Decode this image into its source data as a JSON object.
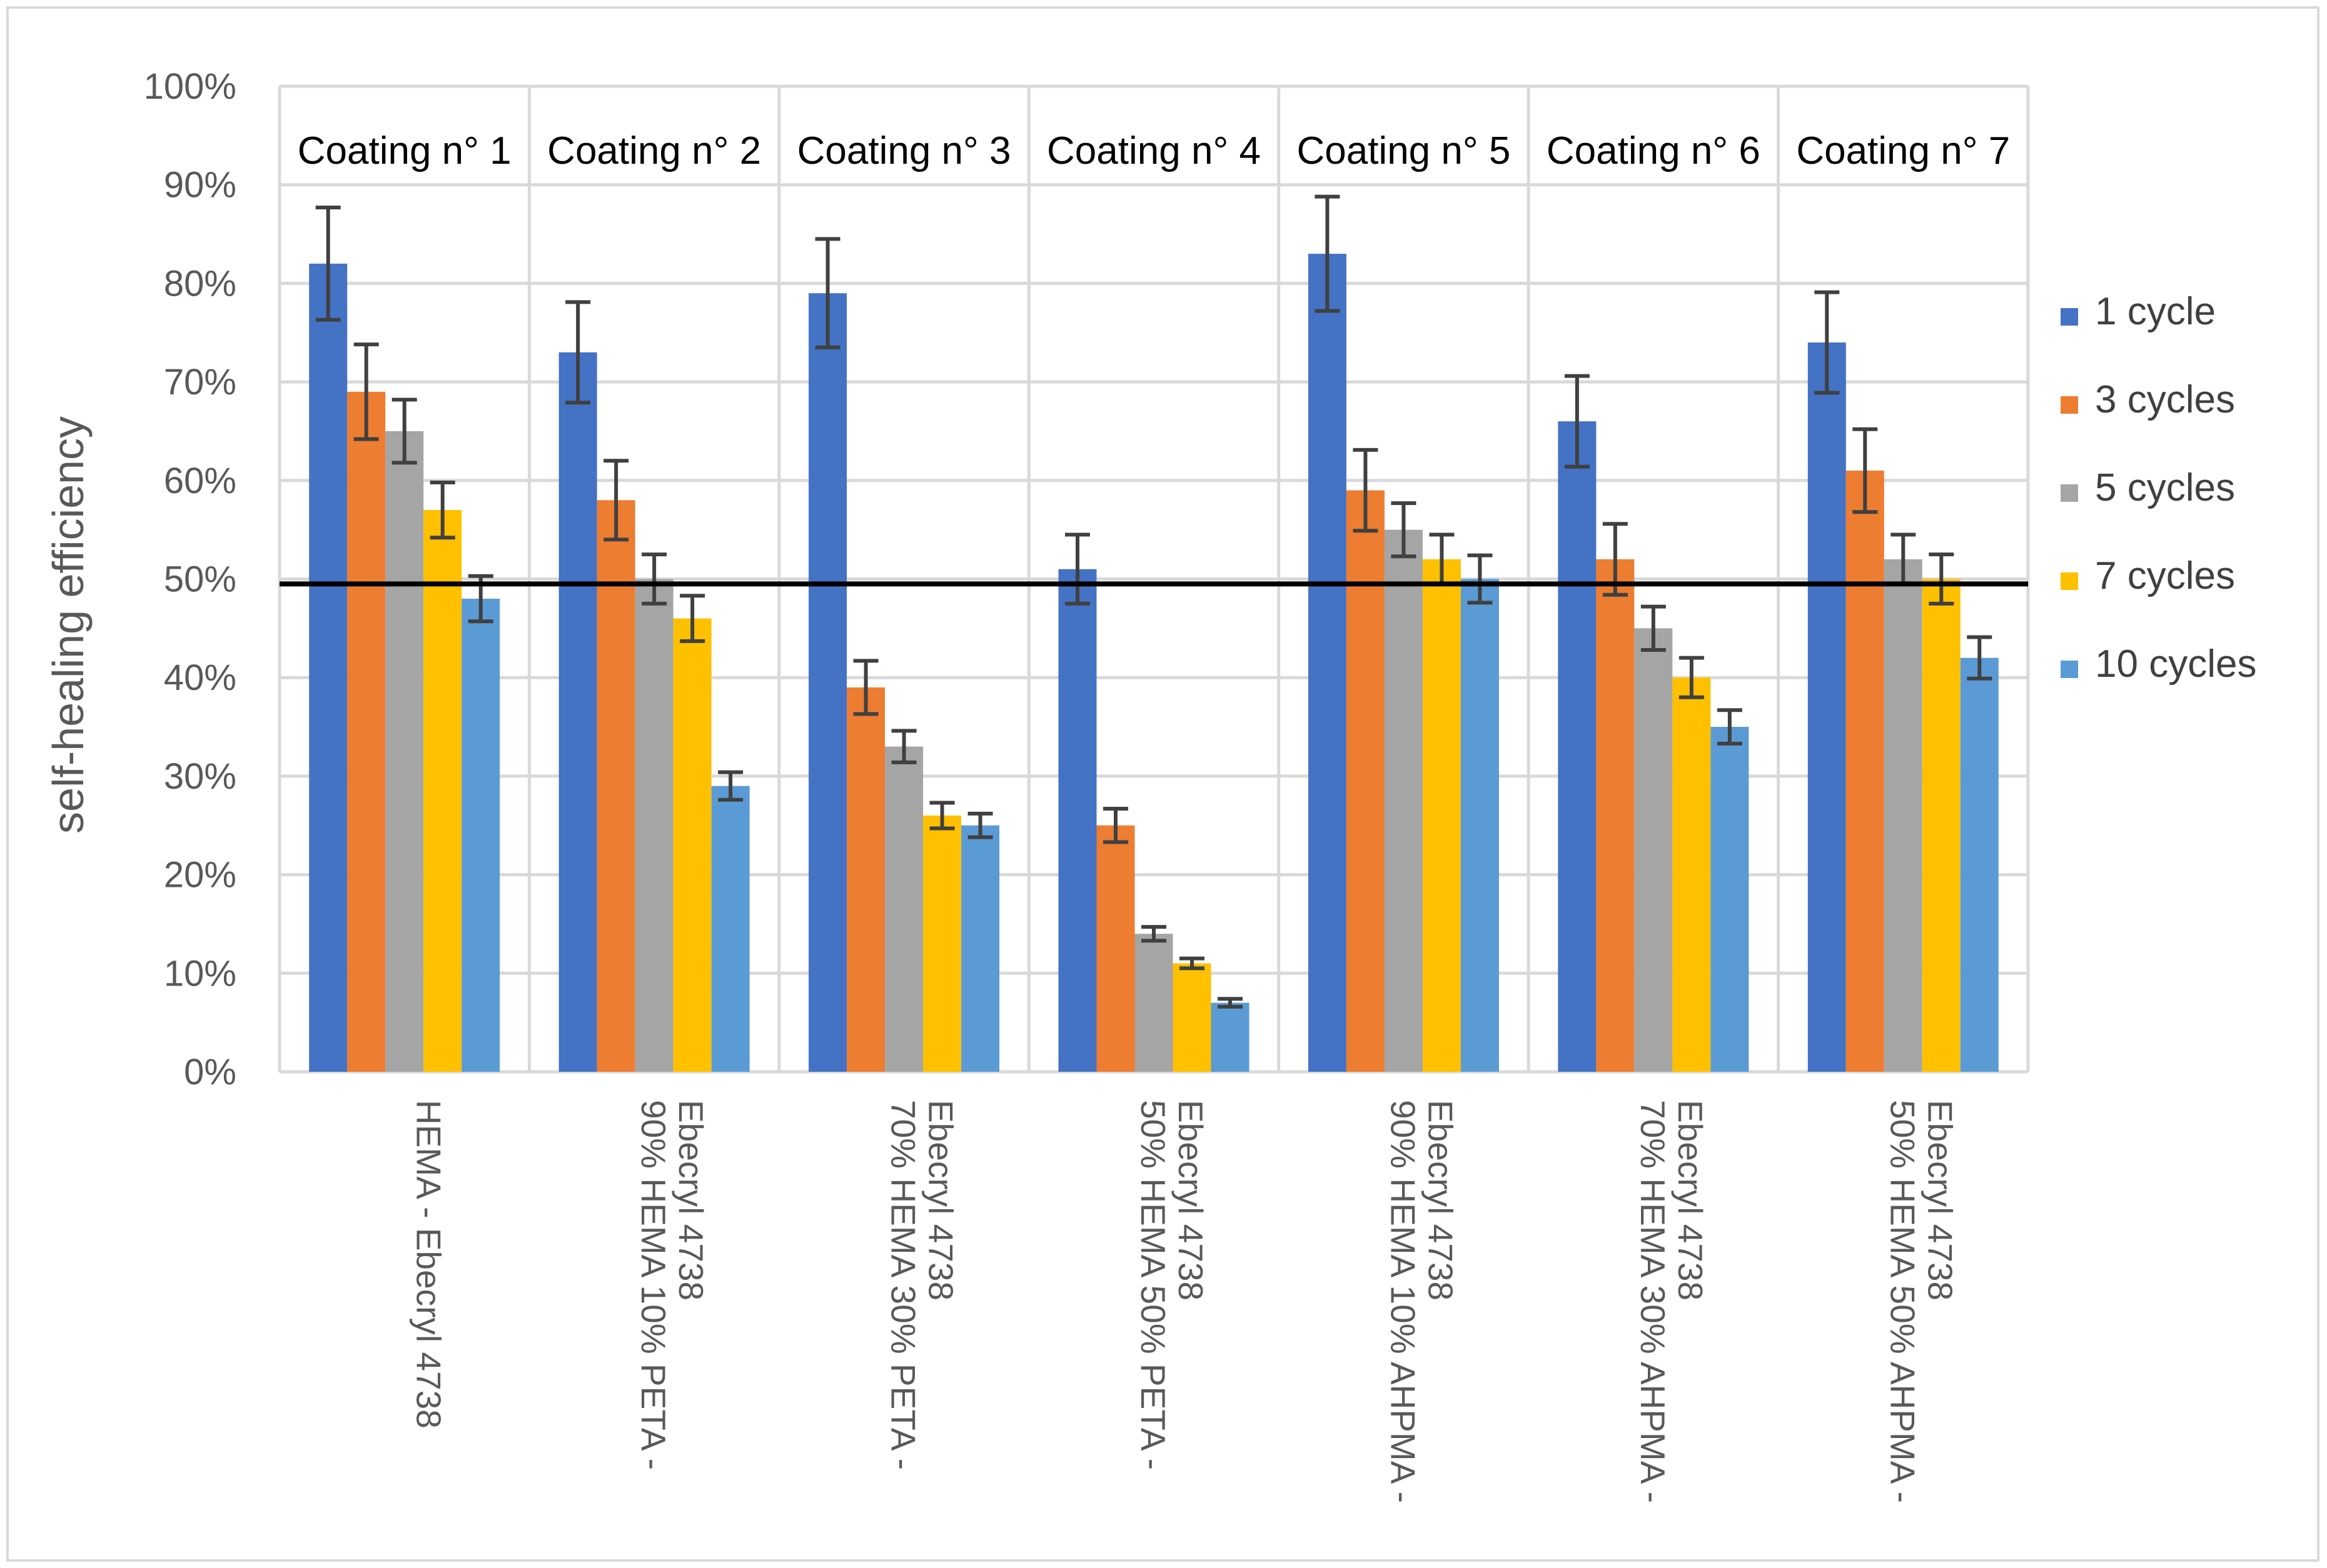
{
  "chart_data": {
    "type": "bar",
    "title": "",
    "xlabel": "",
    "ylabel": "self-healing efficiency",
    "ylim": [
      0,
      100
    ],
    "y_ticks": [
      "0%",
      "10%",
      "20%",
      "30%",
      "40%",
      "50%",
      "60%",
      "70%",
      "80%",
      "90%",
      "100%"
    ],
    "reference_line": 49.5,
    "grid": true,
    "legend_position": "right",
    "panel_titles": [
      "Coating n° 1",
      "Coating n° 2",
      "Coating n° 3",
      "Coating n° 4",
      "Coating n° 5",
      "Coating n° 6",
      "Coating n° 7"
    ],
    "categories": [
      [
        "HEMA - Ebecryl 4738"
      ],
      [
        "90% HEMA 10% PETA -",
        "Ebecryl 4738"
      ],
      [
        "70% HEMA 30% PETA -",
        "Ebecryl 4738"
      ],
      [
        "50% HEMA 50% PETA -",
        "Ebecryl 4738"
      ],
      [
        "90% HEMA 10% AHPMA -",
        "Ebecryl 4738"
      ],
      [
        "70% HEMA 30% AHPMA -",
        "Ebecryl 4738"
      ],
      [
        "50% HEMA 50% AHPMA -",
        "Ebecryl 4738"
      ]
    ],
    "series": [
      {
        "name": "1 cycle",
        "color": "#4472c4",
        "values": [
          82,
          73,
          79,
          51,
          83,
          66,
          74
        ],
        "errors": [
          5.7,
          5.1,
          5.5,
          3.5,
          5.8,
          4.6,
          5.1
        ]
      },
      {
        "name": "3 cycles",
        "color": "#ed7d31",
        "values": [
          69,
          58,
          39,
          25,
          59,
          52,
          61
        ],
        "errors": [
          4.8,
          4.0,
          2.7,
          1.7,
          4.1,
          3.6,
          4.2
        ]
      },
      {
        "name": "5 cycles",
        "color": "#a5a5a5",
        "values": [
          65,
          50,
          33,
          14,
          55,
          45,
          52
        ],
        "errors": [
          3.2,
          2.5,
          1.6,
          0.7,
          2.7,
          2.2,
          2.5
        ]
      },
      {
        "name": "7 cycles",
        "color": "#ffc000",
        "values": [
          57,
          46,
          26,
          11,
          52,
          40,
          50
        ],
        "errors": [
          2.8,
          2.3,
          1.3,
          0.5,
          2.5,
          2.0,
          2.5
        ]
      },
      {
        "name": "10 cycles",
        "color": "#5b9bd5",
        "values": [
          48,
          29,
          25,
          7,
          50,
          35,
          42
        ],
        "errors": [
          2.3,
          1.4,
          1.2,
          0.4,
          2.4,
          1.7,
          2.1
        ]
      }
    ]
  }
}
